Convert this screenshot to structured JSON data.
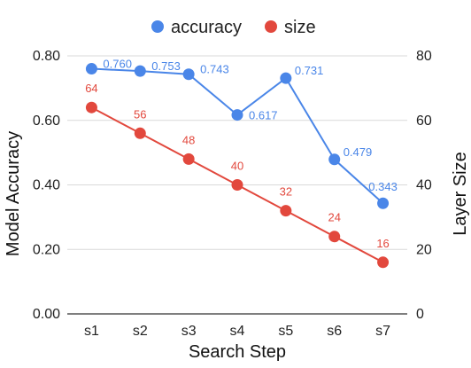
{
  "chart_data": {
    "type": "line",
    "xlabel": "Search Step",
    "ylabel_left": "Model Accuracy",
    "ylabel_right": "Layer Size",
    "categories": [
      "s1",
      "s2",
      "s3",
      "s4",
      "s5",
      "s6",
      "s7"
    ],
    "ylim_left": [
      0,
      0.8
    ],
    "ylim_right": [
      0,
      80
    ],
    "yticks_left": [
      "0.00",
      "0.20",
      "0.40",
      "0.60",
      "0.80"
    ],
    "yticks_right": [
      "0",
      "20",
      "40",
      "60",
      "80"
    ],
    "grid": true,
    "legend_position": "top",
    "series": [
      {
        "name": "accuracy",
        "axis": "left",
        "color": "#4a86e8",
        "values": [
          0.76,
          0.753,
          0.743,
          0.617,
          0.731,
          0.479,
          0.343
        ],
        "labels": [
          "0.760",
          "0.753",
          "0.743",
          "0.617",
          "0.731",
          "0.479",
          "0.343"
        ]
      },
      {
        "name": "size",
        "axis": "right",
        "color": "#e2483d",
        "values": [
          64,
          56,
          48,
          40,
          32,
          24,
          16
        ],
        "labels": [
          "64",
          "56",
          "48",
          "40",
          "32",
          "24",
          "16"
        ]
      }
    ]
  }
}
